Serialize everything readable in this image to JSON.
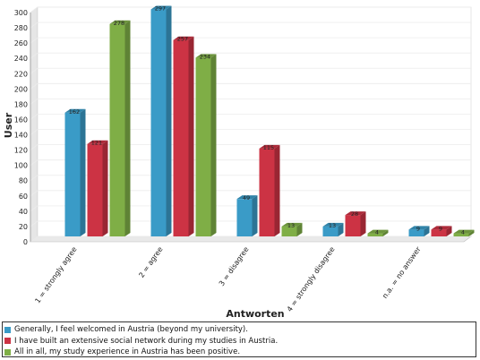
{
  "chart_data": {
    "type": "bar",
    "title": "",
    "xlabel": "Antworten",
    "ylabel": "User",
    "ylim": [
      0,
      300
    ],
    "yticks": [
      0,
      20,
      40,
      60,
      80,
      100,
      120,
      140,
      160,
      180,
      200,
      220,
      240,
      260,
      280,
      300
    ],
    "categories": [
      "1 = strongly agree",
      "2 = agree",
      "3 = disagree",
      "4 = strongly disagree",
      "n.a. = no answer"
    ],
    "series": [
      {
        "name": "Generally, I feel welcomed in Austria (beyond my university).",
        "color": "#3a9bc7",
        "values": [
          162,
          297,
          49,
          13,
          9
        ]
      },
      {
        "name": "I have built an extensive social network during my studies in Austria.",
        "color": "#cc3344",
        "values": [
          121,
          257,
          115,
          28,
          9
        ]
      },
      {
        "name": "All in all, my study experience in Austria has been positive.",
        "color": "#7fae46",
        "values": [
          278,
          234,
          13,
          4,
          4
        ]
      }
    ],
    "grid": true,
    "legend_position": "bottom"
  }
}
